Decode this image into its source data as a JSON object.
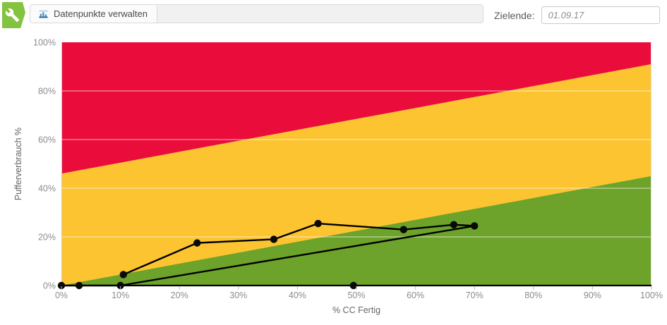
{
  "toolbar": {
    "app_badge": {
      "icon": "wrench-icon",
      "color": "#83c340"
    },
    "manage_button": {
      "label": "Datenpunkte verwalten",
      "icon": "bar-chart-icon",
      "icon_color": "#4d8fc9"
    },
    "target_end": {
      "label": "Zielende:",
      "value": "01.09.17"
    }
  },
  "chart_data": {
    "type": "line",
    "title": "",
    "xlabel": "% CC Fertig",
    "ylabel": "Pufferverbrauch %",
    "xlim": [
      0,
      100
    ],
    "ylim": [
      0,
      100
    ],
    "x_ticks": [
      0,
      10,
      20,
      30,
      40,
      50,
      60,
      70,
      80,
      90,
      100
    ],
    "y_ticks": [
      0,
      20,
      40,
      60,
      80,
      100
    ],
    "tick_suffix": "%",
    "y_gridlines": [
      20,
      40,
      60,
      80
    ],
    "grid": "horizontal-only",
    "legend": "none",
    "zones": {
      "green": {
        "color": "#6da22b",
        "top_at_x0": 0,
        "top_at_x100": 45
      },
      "yellow": {
        "color": "#fcc431"
      },
      "red": {
        "color": "#ea0d3c",
        "bottom_at_x0": 46,
        "bottom_at_x100": 91
      }
    },
    "series": [
      {
        "name": "baseline-path",
        "color": "#000000",
        "points": [
          [
            0,
            0
          ],
          [
            3,
            0
          ],
          [
            10,
            0
          ],
          [
            70,
            24.5
          ]
        ]
      },
      {
        "name": "fever-path",
        "color": "#000000",
        "points": [
          [
            10.5,
            4.5
          ],
          [
            23,
            17.5
          ],
          [
            36,
            19
          ],
          [
            43.5,
            25.5
          ],
          [
            58,
            23
          ],
          [
            66.5,
            25
          ],
          [
            70,
            24.5
          ]
        ]
      }
    ],
    "markers": [
      [
        0,
        0
      ],
      [
        3,
        0
      ],
      [
        10,
        0
      ],
      [
        10.5,
        4.5
      ],
      [
        23,
        17.5
      ],
      [
        36,
        19
      ],
      [
        43.5,
        25.5
      ],
      [
        49.5,
        0
      ],
      [
        58,
        23
      ],
      [
        66.5,
        25
      ],
      [
        70,
        24.5
      ]
    ],
    "axis_colors": {
      "tick_label": "#8c8c8c",
      "axis_title": "#666666",
      "x_axis_line": "#000000",
      "side_line": "#cccccc"
    }
  }
}
